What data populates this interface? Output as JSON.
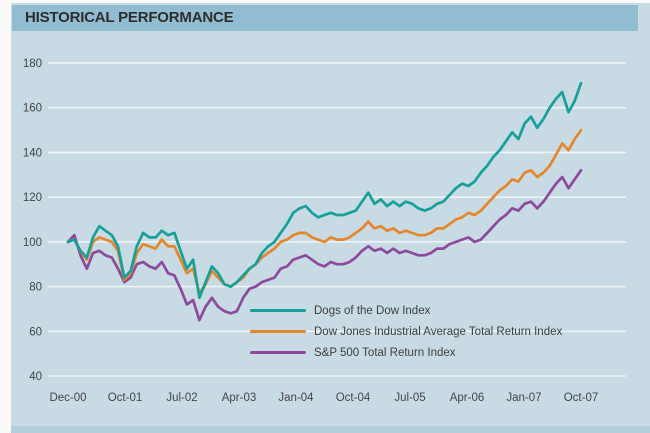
{
  "title": "HISTORICAL PERFORMANCE",
  "colors": {
    "header_band": "#92bcd2",
    "chart_background": "#c8dbe4",
    "gridline": "#edf3f6",
    "axis_text": "#454545",
    "title_text": "#2d2d2d",
    "dogs_teal": "#17a099",
    "djia_orange": "#e5862c",
    "sp500_purple": "#8d4a9d"
  },
  "chart_data": {
    "type": "line",
    "title": "HISTORICAL PERFORMANCE",
    "xlabel": "",
    "ylabel": "",
    "ylim": [
      40,
      180
    ],
    "y_ticks": [
      180,
      160,
      140,
      120,
      100,
      80,
      60,
      40
    ],
    "x_tick_labels": [
      "Dec-00",
      "Oct-01",
      "Jul-02",
      "Apr-03",
      "Jan-04",
      "Oct-04",
      "Jul-05",
      "Apr-06",
      "Jan-07",
      "Oct-07"
    ],
    "x_unit": "months, Dec-00 through Oct-07, indexed to 100 at Dec-00",
    "grid": "horizontal-only",
    "legend_position": "inside-bottom-right",
    "series": [
      {
        "name": "S&P 500 Total Return Index",
        "color": "#8d4a9d",
        "values": [
          100,
          103,
          94,
          88,
          95,
          96,
          94,
          93,
          88,
          82,
          84,
          90,
          91,
          89,
          88,
          91,
          86,
          85,
          79,
          72,
          74,
          65,
          71,
          75,
          71,
          69,
          68,
          69,
          75,
          79,
          80,
          82,
          83,
          84,
          88,
          89,
          92,
          93,
          94,
          92,
          90,
          89,
          91,
          90,
          90,
          91,
          93,
          96,
          98,
          96,
          97,
          95,
          97,
          95,
          96,
          95,
          94,
          94,
          95,
          97,
          97,
          99,
          100,
          101,
          102,
          100,
          101,
          104,
          107,
          110,
          112,
          115,
          114,
          117,
          118,
          115,
          118,
          122,
          126,
          129,
          124,
          128,
          132
        ]
      },
      {
        "name": "Dow Jones Industrial Average Total Return Index",
        "color": "#e5862c",
        "values": [
          100,
          101,
          96,
          92,
          100,
          102,
          101,
          100,
          96,
          83,
          86,
          95,
          99,
          98,
          97,
          101,
          98,
          98,
          92,
          86,
          88,
          77,
          81,
          87,
          84,
          81,
          80,
          82,
          84,
          88,
          90,
          93,
          95,
          97,
          100,
          101,
          103,
          104,
          104,
          102,
          101,
          100,
          102,
          101,
          101,
          102,
          104,
          106,
          109,
          106,
          107,
          105,
          106,
          104,
          105,
          104,
          103,
          103,
          104,
          106,
          106,
          108,
          110,
          111,
          113,
          112,
          114,
          117,
          120,
          123,
          125,
          128,
          127,
          131,
          132,
          129,
          131,
          134,
          139,
          144,
          141,
          146,
          150
        ]
      },
      {
        "name": "Dogs of the Dow Index",
        "color": "#17a099",
        "values": [
          100,
          101,
          96,
          93,
          102,
          107,
          105,
          103,
          98,
          84,
          87,
          98,
          104,
          102,
          102,
          105,
          103,
          104,
          96,
          88,
          92,
          75,
          82,
          89,
          86,
          81,
          80,
          82,
          85,
          88,
          90,
          95,
          98,
          100,
          104,
          108,
          113,
          115,
          116,
          113,
          111,
          112,
          113,
          112,
          112,
          113,
          114,
          118,
          122,
          117,
          119,
          116,
          118,
          116,
          118,
          117,
          115,
          114,
          115,
          117,
          118,
          121,
          124,
          126,
          125,
          127,
          131,
          134,
          138,
          141,
          145,
          149,
          146,
          153,
          156,
          151,
          155,
          160,
          164,
          167,
          158,
          163,
          171
        ]
      }
    ],
    "legend_order": [
      "Dogs of the Dow Index",
      "Dow Jones Industrial Average Total Return Index",
      "S&P 500 Total Return Index"
    ]
  }
}
